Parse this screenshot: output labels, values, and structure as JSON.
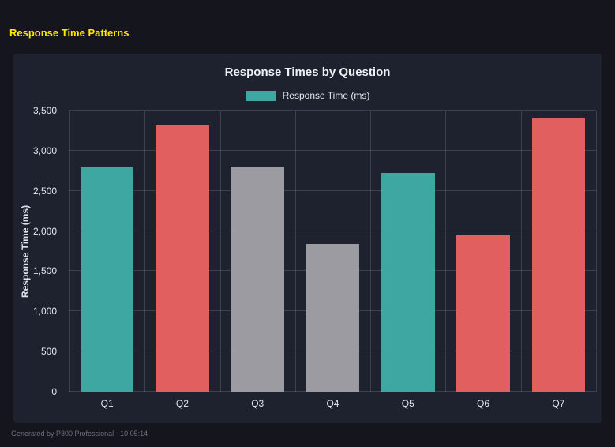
{
  "page": {
    "title": "Response Time Patterns"
  },
  "footer": {
    "text": "Generated by P300 Professional - 10:05:14"
  },
  "colors": {
    "background": "#14151d",
    "card_background": "#1e222e",
    "header_yellow": "#ffe800",
    "teal": "#3fa7a1",
    "red": "#e25f5f",
    "gray": "#9b9ba1"
  },
  "chart_data": {
    "type": "bar",
    "title": "Response Times by Question",
    "categories": [
      "Q1",
      "Q2",
      "Q3",
      "Q4",
      "Q5",
      "Q6",
      "Q7"
    ],
    "values": [
      2790,
      3320,
      2800,
      1840,
      2720,
      1950,
      3400
    ],
    "bar_colors": [
      "#3fa7a1",
      "#e25f5f",
      "#9b9ba1",
      "#9b9ba1",
      "#3fa7a1",
      "#e25f5f",
      "#e25f5f"
    ],
    "xlabel": "",
    "ylabel": "Response Time (ms)",
    "ylim": [
      0,
      3500
    ],
    "yticks": [
      0,
      500,
      1000,
      1500,
      2000,
      2500,
      3000,
      3500
    ],
    "ytick_labels": [
      "0",
      "500",
      "1,000",
      "1,500",
      "2,000",
      "2,500",
      "3,000",
      "3,500"
    ],
    "legend": {
      "label": "Response Time (ms)",
      "color": "#3fa7a1",
      "position": "top"
    },
    "grid": true
  }
}
